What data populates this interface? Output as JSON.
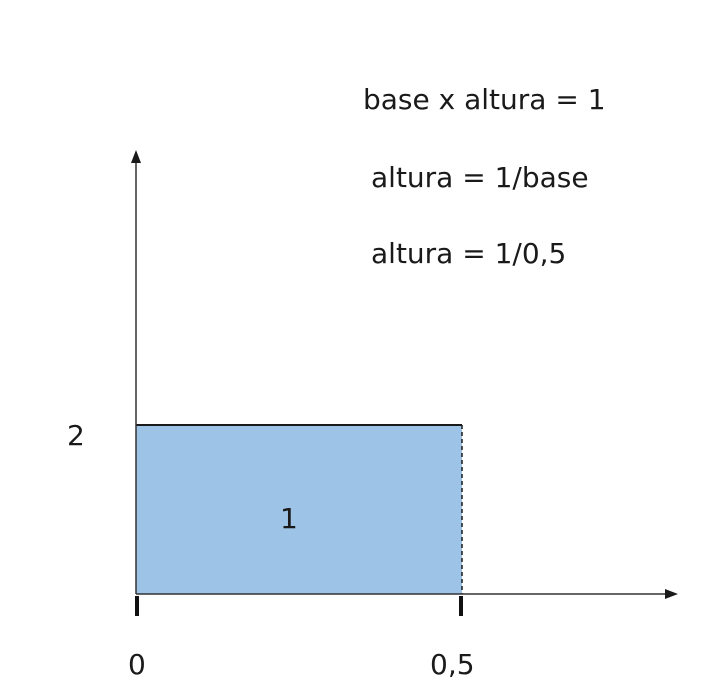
{
  "equations": [
    "base x altura = 1",
    "altura = 1/base",
    "altura = 1/0,5"
  ],
  "axis_labels": {
    "y_tick": "2",
    "x_tick_start": "0",
    "x_tick_end": "0,5"
  },
  "rectangle": {
    "area_label": "1",
    "fill_color": "#9dc3e6",
    "edge_color": "#000000"
  },
  "axis_color": "#333333"
}
